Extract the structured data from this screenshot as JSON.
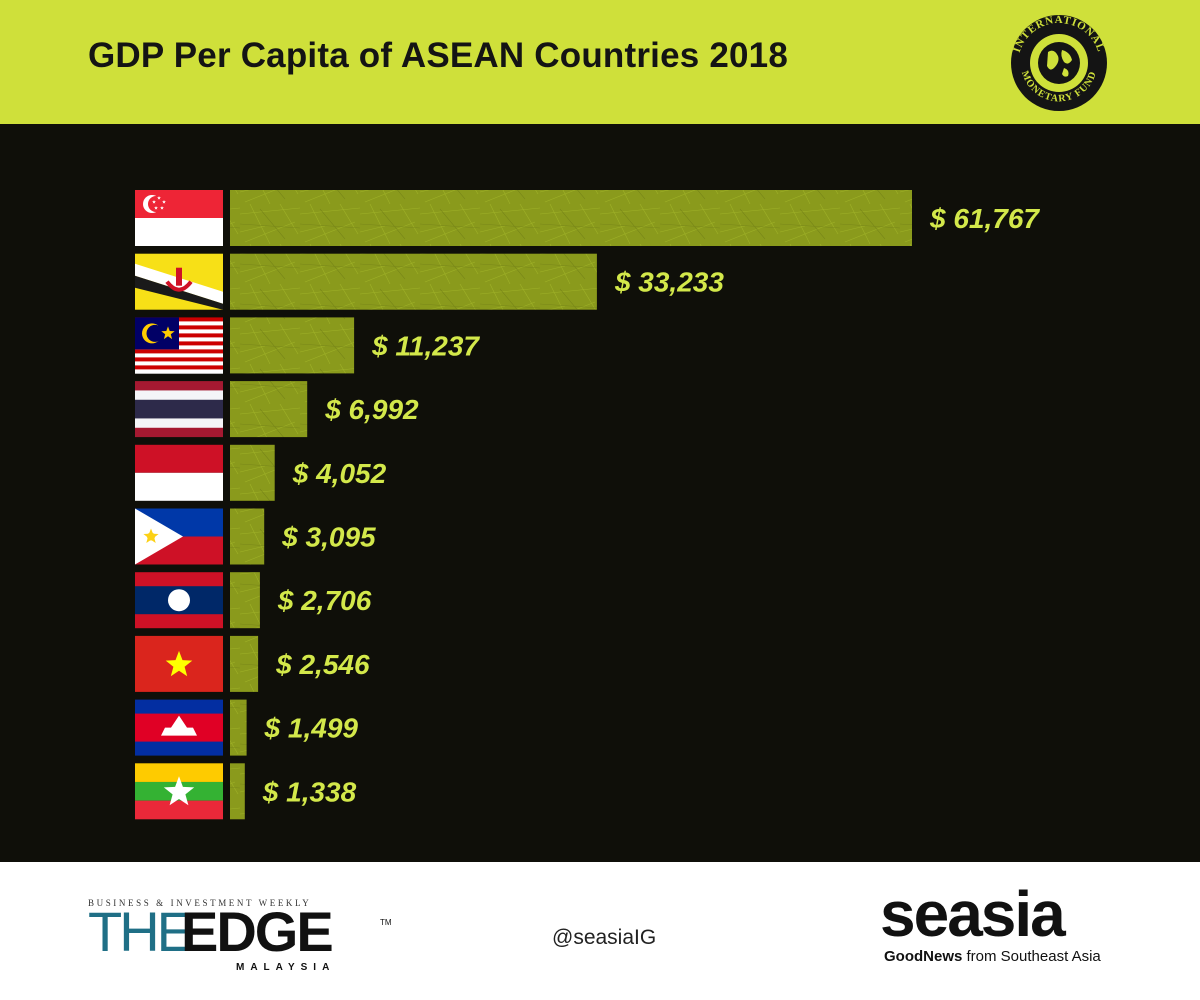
{
  "header": {
    "title": "GDP Per Capita of ASEAN Countries 2018",
    "seal_text_top": "INTERNATIONAL",
    "seal_text_bottom": "MONETARY FUND"
  },
  "chart_data": {
    "type": "bar",
    "orientation": "horizontal",
    "title": "GDP Per Capita of ASEAN Countries 2018",
    "categories": [
      "Singapore",
      "Brunei",
      "Malaysia",
      "Thailand",
      "Indonesia",
      "Philippines",
      "Laos",
      "Vietnam",
      "Cambodia",
      "Myanmar"
    ],
    "values": [
      61767,
      33233,
      11237,
      6992,
      4052,
      3095,
      2706,
      2546,
      1499,
      1338
    ],
    "labels": [
      "$ 61,767",
      "$ 33,233",
      "$ 11,237",
      "$ 6,992",
      "$ 4,052",
      "$ 3,095",
      "$ 2,706",
      "$ 2,546",
      "$ 1,499",
      "$ 1,338"
    ],
    "category_markers": "flags",
    "grid": false,
    "xlabel": "",
    "ylabel": "",
    "colors": {
      "bar": "#8a9a1c",
      "label": "#d3e84a",
      "background": "#0f0f09",
      "header": "#cfe03a"
    }
  },
  "footer": {
    "edge_tagline": "BUSINESS & INVESTMENT WEEKLY",
    "edge_the": "THE",
    "edge_edge": "EDGE",
    "edge_tm": "TM",
    "edge_country": "MALAYSIA",
    "handle": "@seasiaIG",
    "seasia_logo": "seasia",
    "seasia_tag_bold": "GoodNews",
    "seasia_tag_rest": " from Southeast Asia"
  }
}
